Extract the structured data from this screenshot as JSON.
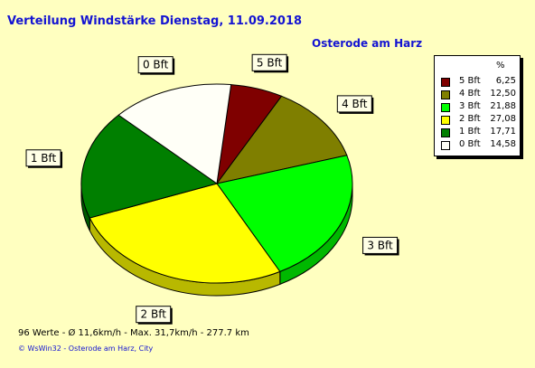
{
  "chart_data": {
    "type": "pie",
    "title": "Verteilung Windstärke  Dienstag, 11.09.2018",
    "subtitle": "Osterode am Harz",
    "categories": [
      "5 Bft",
      "4 Bft",
      "3 Bft",
      "2 Bft",
      "1 Bft",
      "0 Bft"
    ],
    "values": [
      6.25,
      12.5,
      21.88,
      27.08,
      17.71,
      14.58
    ],
    "value_labels": [
      "6,25",
      "12,50",
      "21,88",
      "27,08",
      "17,71",
      "14,58"
    ],
    "colors": [
      "#7F0000",
      "#7F7F00",
      "#00FF00",
      "#FFFF00",
      "#007F00",
      "#FFFFF7"
    ],
    "legend_header": "%",
    "legend_position": "top-right",
    "three_d": true
  },
  "footer": {
    "stats": "96 Werte   -   Ø 11,6km/h  -  Max. 31,7km/h   -   277.7 km",
    "credit": "© WsWin32   -   Osterode am Harz, City"
  }
}
